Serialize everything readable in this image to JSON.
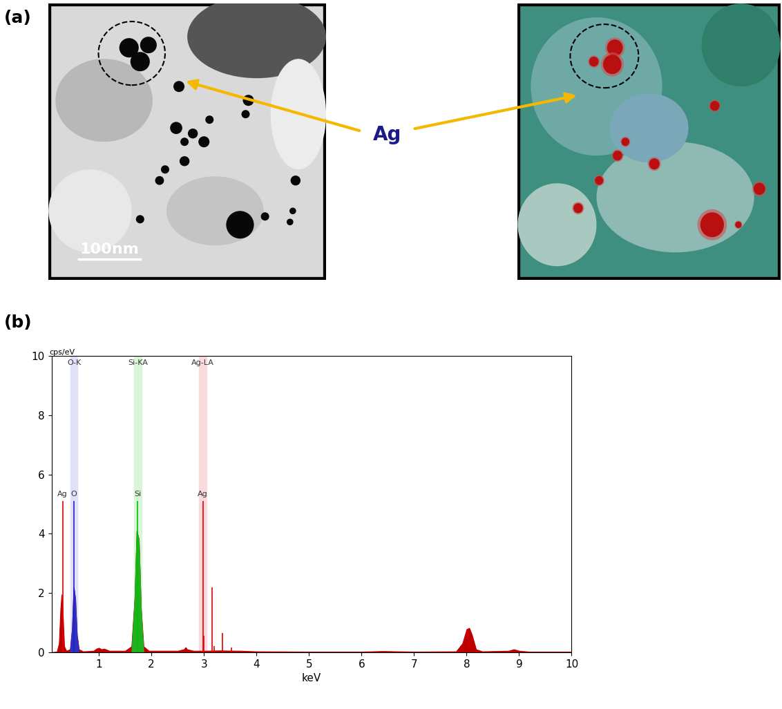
{
  "panel_a": {
    "label": "(a)",
    "scale_bar": "100nm",
    "annotation": "Ag"
  },
  "panel_b": {
    "label": "(b)"
  },
  "chart_data": {
    "type": "area",
    "ylabel": "cps/eV",
    "xlabel": "keV",
    "xlim": [
      0.1,
      10
    ],
    "xticks": [
      1,
      2,
      3,
      4,
      5,
      6,
      7,
      8,
      9,
      10
    ],
    "ylim": [
      0,
      10
    ],
    "yticks": [
      0,
      2,
      4,
      6,
      8,
      10
    ],
    "series": [
      {
        "color": "#c00000",
        "x": [
          0.1,
          0.2,
          0.24,
          0.27,
          0.29,
          0.31,
          0.34,
          0.38,
          0.45,
          0.49,
          0.52,
          0.55,
          0.58,
          0.62,
          0.7,
          0.9,
          0.95,
          1.0,
          1.05,
          1.1,
          1.2,
          1.5,
          1.62,
          1.68,
          1.72,
          1.76,
          1.8,
          1.85,
          1.95,
          2.5,
          2.62,
          2.65,
          2.68,
          2.8,
          3.0,
          3.3,
          3.7,
          4.0,
          5.0,
          6.0,
          6.4,
          7.0,
          7.8,
          7.92,
          8.0,
          8.05,
          8.1,
          8.18,
          8.3,
          8.8,
          8.9,
          9.0,
          9.2,
          10.0
        ],
        "values": [
          0,
          0.02,
          0.3,
          1.5,
          1.95,
          1.4,
          0.2,
          0.05,
          0.1,
          0.8,
          2.2,
          1.8,
          0.6,
          0.1,
          0.03,
          0.05,
          0.12,
          0.15,
          0.1,
          0.12,
          0.05,
          0.05,
          0.2,
          1.8,
          4.1,
          3.8,
          1.5,
          0.2,
          0.05,
          0.05,
          0.1,
          0.17,
          0.1,
          0.05,
          0.05,
          0.06,
          0.05,
          0.03,
          0.02,
          0.02,
          0.04,
          0.02,
          0.03,
          0.3,
          0.78,
          0.82,
          0.6,
          0.1,
          0.03,
          0.05,
          0.1,
          0.05,
          0.02,
          0.02
        ]
      },
      {
        "color": "#3030c0",
        "x": [
          0.45,
          0.49,
          0.52,
          0.55,
          0.58,
          0.62
        ],
        "values": [
          0,
          0.8,
          2.2,
          1.8,
          0.6,
          0
        ]
      },
      {
        "color": "#20b020",
        "x": [
          1.62,
          1.68,
          1.72,
          1.76,
          1.8,
          1.85
        ],
        "values": [
          0,
          1.8,
          4.1,
          3.8,
          1.5,
          0
        ]
      }
    ],
    "lines": [
      {
        "label": "Ag",
        "x": 0.31,
        "height": 5.1,
        "color": "#e00000"
      },
      {
        "label": "O",
        "x": 0.525,
        "height": 5.1,
        "color": "#2020d0"
      },
      {
        "label": "Si",
        "x": 1.74,
        "height": 5.1,
        "color": "#00c000"
      },
      {
        "label": "Ag",
        "x": 2.98,
        "height": 5.1,
        "color": "#e00000"
      },
      {
        "x": 3.0,
        "height": 0.55,
        "color": "#e00000"
      },
      {
        "x": 3.15,
        "height": 2.2,
        "color": "#e00000"
      },
      {
        "x": 3.2,
        "height": 0.2,
        "color": "#e00000"
      },
      {
        "x": 3.35,
        "height": 0.65,
        "color": "#e00000"
      },
      {
        "x": 3.52,
        "height": 0.15,
        "color": "#e00000"
      }
    ],
    "bands": [
      {
        "label": "O-K",
        "x": 0.525,
        "color": "#e0e0f8"
      },
      {
        "label": "Si-KA",
        "x": 1.74,
        "color": "#d8f5d8"
      },
      {
        "label": "Ag-LA",
        "x": 2.98,
        "color": "#fadadd"
      }
    ]
  }
}
